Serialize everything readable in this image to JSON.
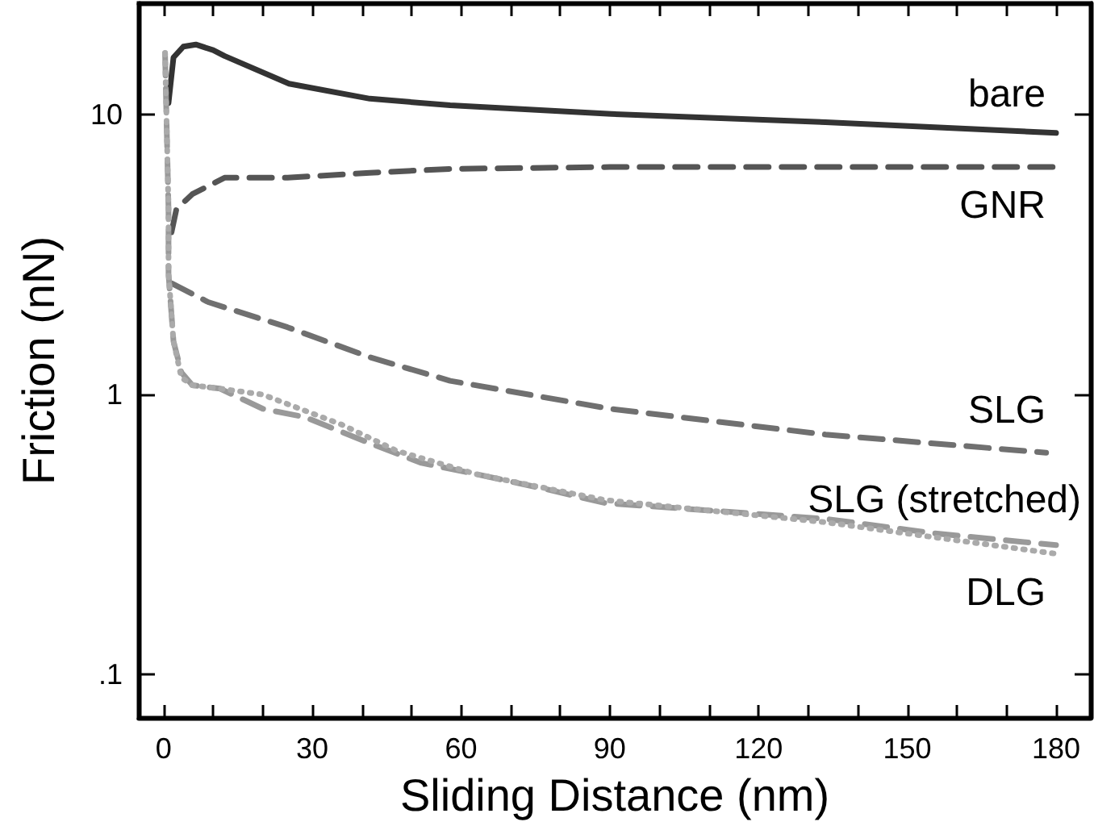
{
  "chart_data": {
    "type": "line",
    "xlabel": "Sliding Distance (nm)",
    "ylabel": "Friction (nN)",
    "log": "y",
    "grid": false,
    "legend": false,
    "marker": "none",
    "xlim": [
      -5,
      187
    ],
    "ylim": [
      0.07,
      25
    ],
    "xticks": [
      0,
      {
        "value": 10,
        "label": null
      },
      {
        "value": 20,
        "label": null
      },
      30,
      {
        "value": 40,
        "label": null
      },
      {
        "value": 50,
        "label": null
      },
      60,
      {
        "value": 70,
        "label": null
      },
      {
        "value": 80,
        "label": null
      },
      90,
      {
        "value": 100,
        "label": null
      },
      {
        "value": 110,
        "label": null
      },
      120,
      {
        "value": 130,
        "label": null
      },
      {
        "value": 140,
        "label": null
      },
      150,
      {
        "value": 160,
        "label": null
      },
      {
        "value": 170,
        "label": null
      },
      180
    ],
    "yticks": [
      {
        "value": 0.1,
        "label": ".1"
      },
      1,
      10
    ],
    "series": [
      {
        "name": "bare",
        "color": "#333333",
        "line_style": "solid",
        "x": [
          1,
          2,
          4,
          6.5,
          10,
          12.3,
          25.3,
          41.6,
          57.8,
          90.3,
          133.5,
          180
        ],
        "values": [
          11,
          16,
          17.5,
          17.8,
          17,
          16.2,
          12.9,
          11.4,
          10.8,
          10.05,
          9.4,
          8.6
        ]
      },
      {
        "name": "GNR",
        "color": "#555555",
        "line_style": "dashed",
        "x": [
          1.6,
          2.6,
          5.8,
          12.3,
          25,
          41.6,
          57.8,
          90,
          180
        ],
        "values": [
          3.8,
          4.6,
          5.2,
          5.95,
          5.95,
          6.2,
          6.4,
          6.5,
          6.5
        ]
      },
      {
        "name": "SLG",
        "color": "#707070",
        "line_style": "dashed",
        "x": [
          1.6,
          9,
          25,
          41.6,
          57.8,
          90,
          133.5,
          178
        ],
        "values": [
          2.5,
          2.14,
          1.74,
          1.36,
          1.12,
          0.89,
          0.72,
          0.62
        ]
      },
      {
        "name": "SLG (stretched)",
        "color": "#999999",
        "line_style": "dashed",
        "x": [
          0.3,
          1,
          1,
          2,
          3.6,
          5.8,
          11.4,
          20,
          28.6,
          41.6,
          52,
          63,
          77,
          89,
          133.5,
          155,
          180
        ],
        "values": [
          16.6,
          4.6,
          2.7,
          1.55,
          1.2,
          1.08,
          1.05,
          0.89,
          0.83,
          0.67,
          0.57,
          0.52,
          0.46,
          0.41,
          0.36,
          0.32,
          0.29
        ]
      },
      {
        "name": "DLG",
        "color": "#aaaaaa",
        "line_style": "dotted",
        "x": [
          0.3,
          1,
          1,
          2,
          3.6,
          5.8,
          11.4,
          20,
          36,
          47,
          63,
          89,
          133.5,
          155,
          180
        ],
        "values": [
          16.6,
          4.6,
          2.7,
          1.55,
          1.15,
          1.08,
          1.05,
          1.0,
          0.78,
          0.63,
          0.52,
          0.42,
          0.35,
          0.31,
          0.27
        ]
      }
    ]
  }
}
